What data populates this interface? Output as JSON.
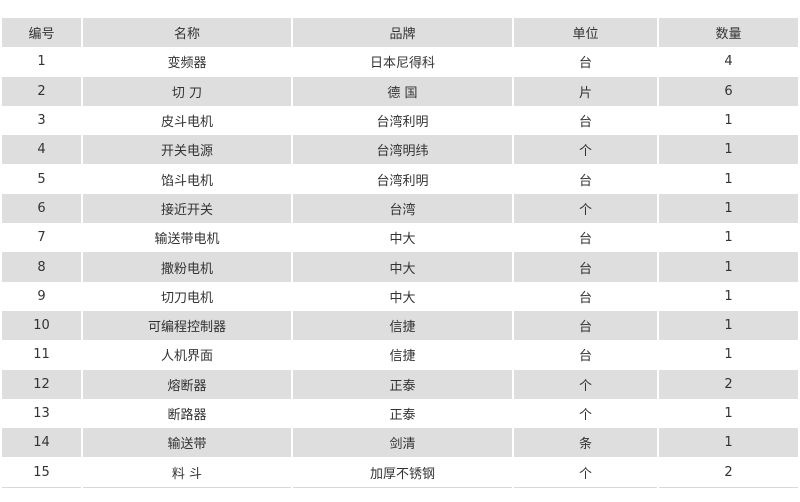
{
  "headers": [
    "编号",
    "名称",
    "品牌",
    "单位",
    "数量"
  ],
  "rows": [
    [
      "1",
      "变频器",
      "日本尼得科",
      "台",
      "4"
    ],
    [
      "2",
      "切 刀",
      "德 国",
      "片",
      "6"
    ],
    [
      "3",
      "皮斗电机",
      "台湾利明",
      "台",
      "1"
    ],
    [
      "4",
      "开关电源",
      "台湾明纬",
      "个",
      "1"
    ],
    [
      "5",
      "馅斗电机",
      "台湾利明",
      "台",
      "1"
    ],
    [
      "6",
      "接近开关",
      "台湾",
      "个",
      "1"
    ],
    [
      "7",
      "输送带电机",
      "中大",
      "台",
      "1"
    ],
    [
      "8",
      "撒粉电机",
      "中大",
      "台",
      "1"
    ],
    [
      "9",
      "切刀电机",
      "中大",
      "台",
      "1"
    ],
    [
      "10",
      "可编程控制器",
      "信捷",
      "台",
      "1"
    ],
    [
      "11",
      "人机界面",
      "信捷",
      "台",
      "1"
    ],
    [
      "12",
      "熔断器",
      "正泰",
      "个",
      "2"
    ],
    [
      "13",
      "断路器",
      "正泰",
      "个",
      "1"
    ],
    [
      "14",
      "输送带",
      "剑清",
      "条",
      "1"
    ],
    [
      "15",
      "料 斗",
      "加厚不锈钢",
      "个",
      "2"
    ]
  ]
}
